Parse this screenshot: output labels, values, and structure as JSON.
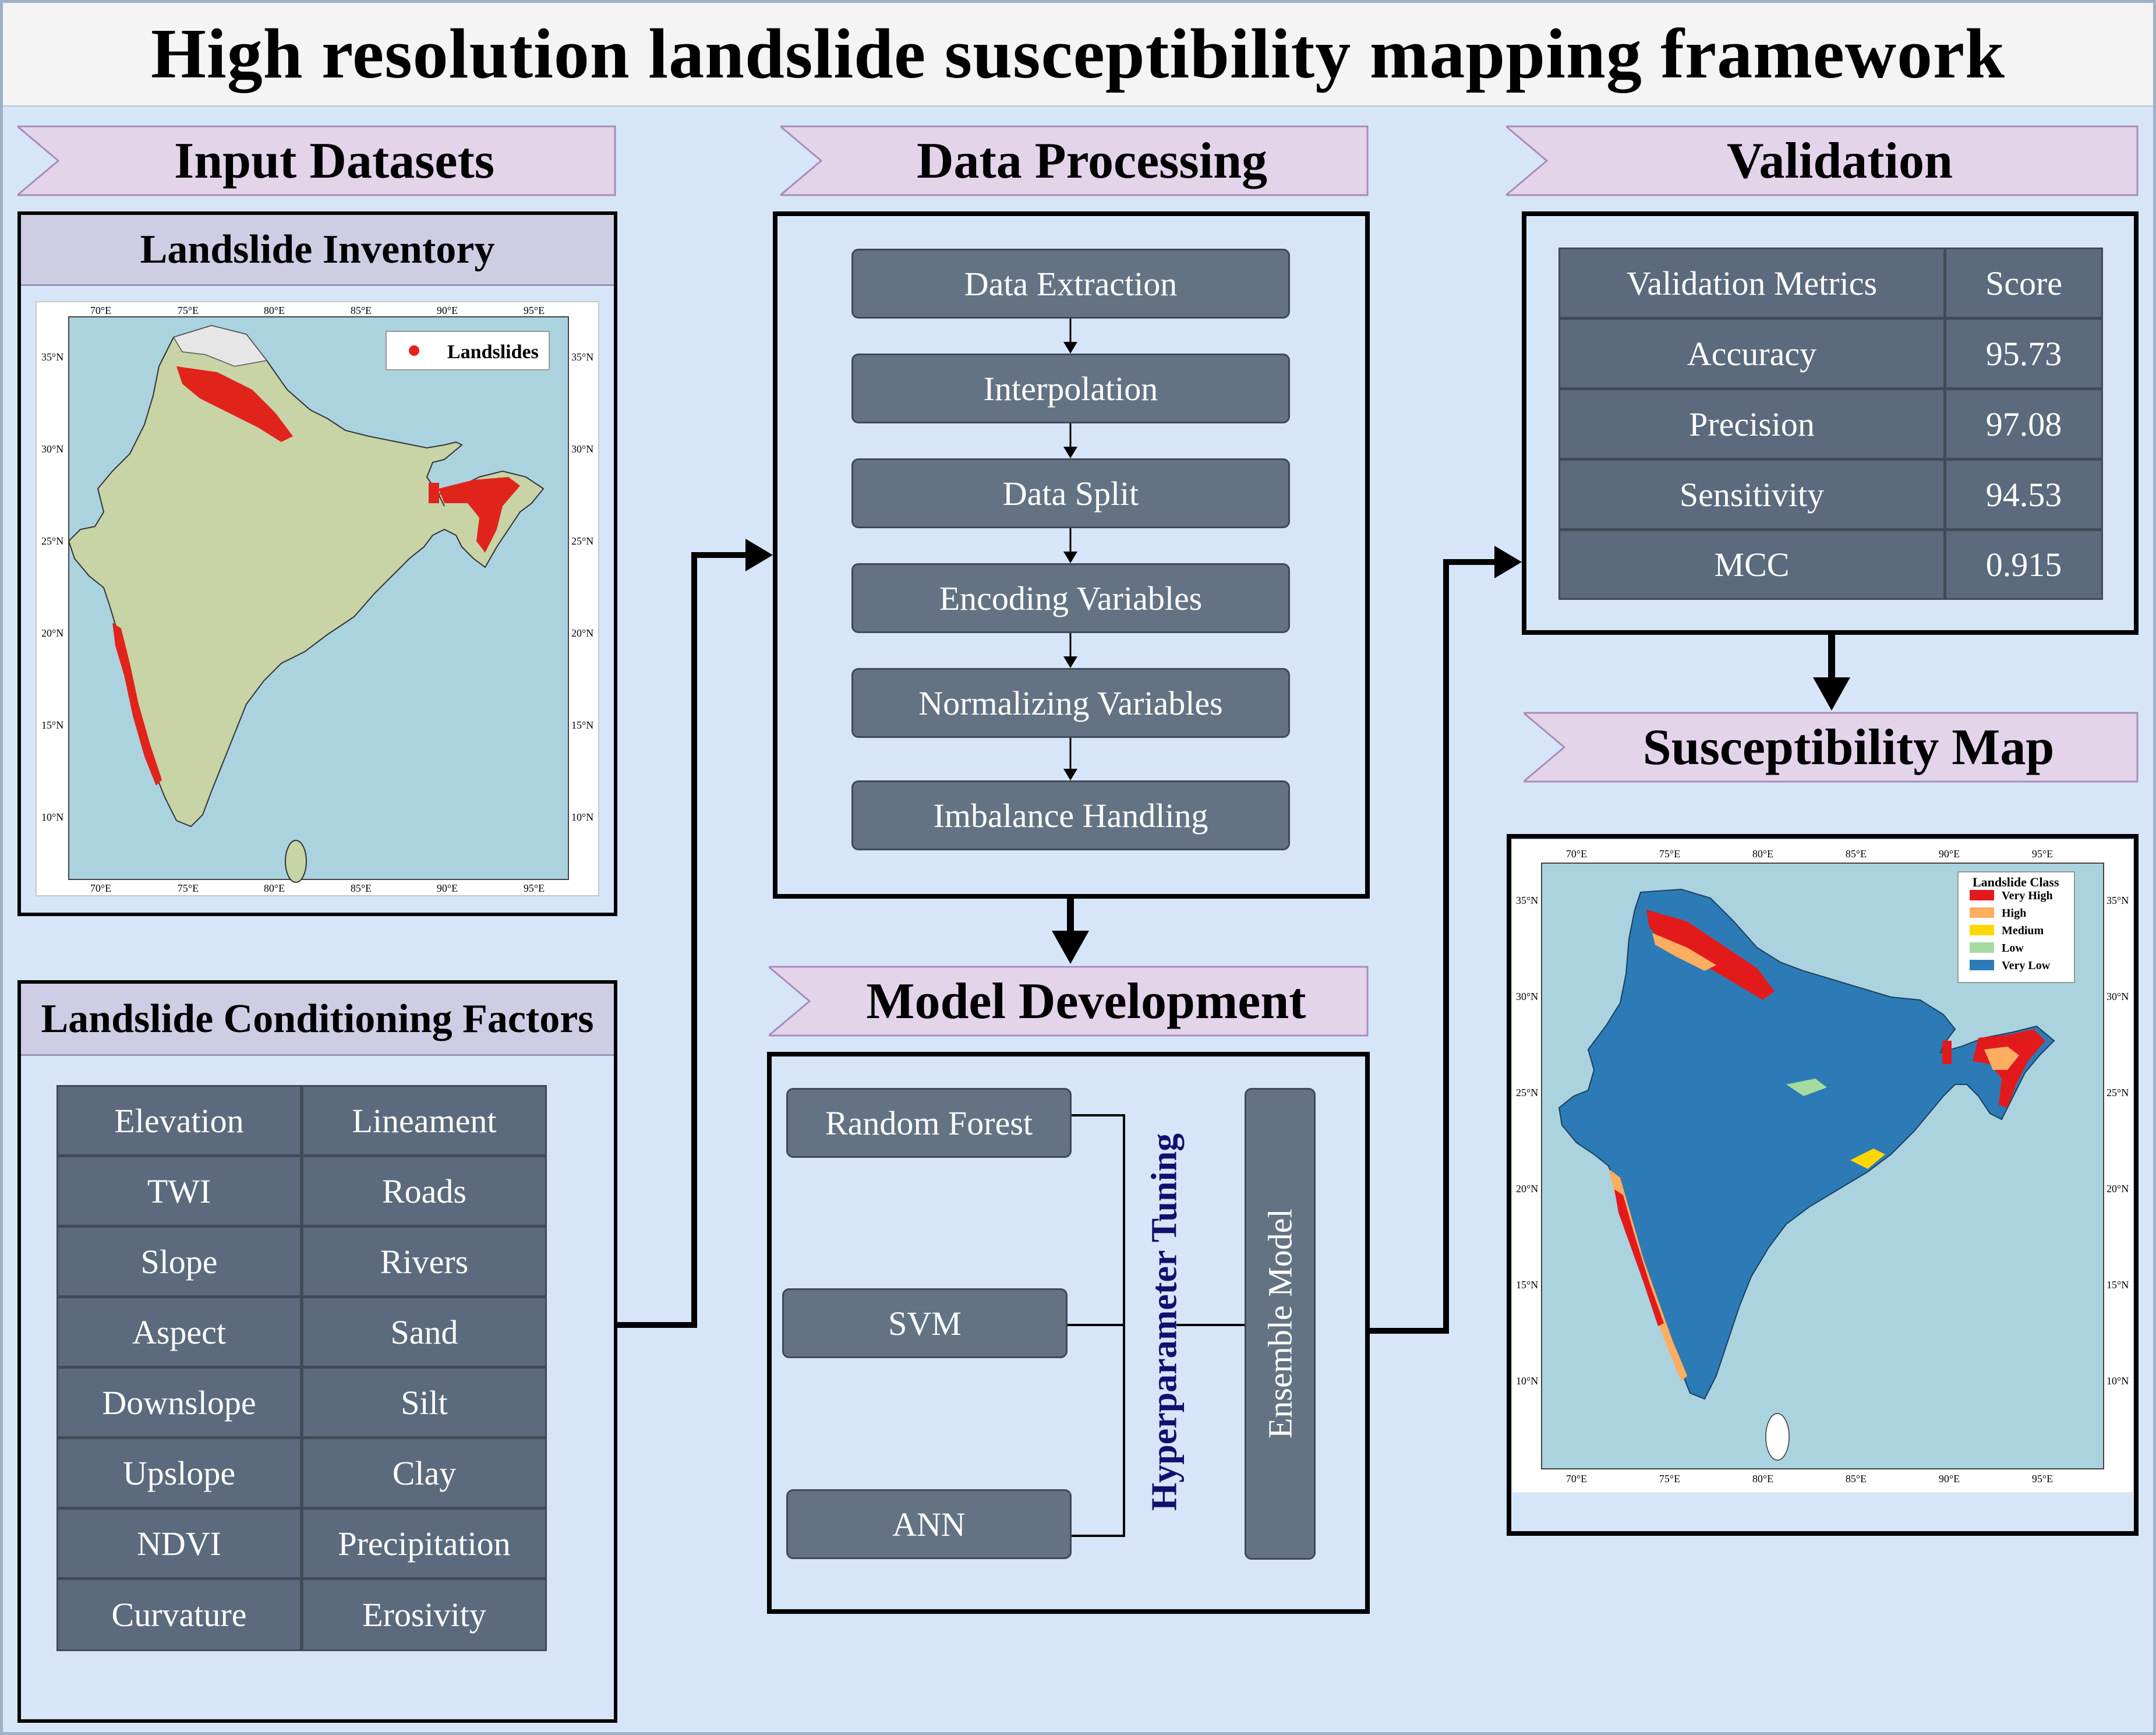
{
  "title": "High resolution landslide susceptibility mapping framework",
  "sections": {
    "input": "Input Datasets",
    "processing": "Data Processing",
    "validation": "Validation",
    "model": "Model Development",
    "susceptibility": "Susceptibility Map"
  },
  "inventory": {
    "title": "Landslide Inventory",
    "legend": "Landslides",
    "x_ticks": [
      "70°E",
      "75°E",
      "80°E",
      "85°E",
      "90°E",
      "95°E"
    ],
    "y_ticks": [
      "35°N",
      "30°N",
      "25°N",
      "20°N",
      "15°N",
      "10°N"
    ]
  },
  "conditioning": {
    "title": "Landslide Conditioning Factors",
    "left": [
      "Elevation",
      "TWI",
      "Slope",
      "Aspect",
      "Downslope",
      "Upslope",
      "NDVI",
      "Curvature"
    ],
    "right": [
      "Lineament",
      "Roads",
      "Rivers",
      "Sand",
      "Silt",
      "Clay",
      "Precipitation",
      "Erosivity"
    ]
  },
  "processing_steps": [
    "Data Extraction",
    "Interpolation",
    "Data Split",
    "Encoding Variables",
    "Normalizing Variables",
    "Imbalance Handling"
  ],
  "model": {
    "models": [
      "Random Forest",
      "SVM",
      "ANN"
    ],
    "tuning": "Hyperparameter Tuning",
    "ensemble": "Ensemble Model"
  },
  "validation_table": {
    "headers": [
      "Validation Metrics",
      "Score"
    ],
    "rows": [
      [
        "Accuracy",
        "95.73"
      ],
      [
        "Precision",
        "97.08"
      ],
      [
        "Sensitivity",
        "94.53"
      ],
      [
        "MCC",
        "0.915"
      ]
    ]
  },
  "susceptibility_legend": {
    "title": "Landslide Class",
    "classes": [
      {
        "label": "Very High",
        "color": "#e31a1c"
      },
      {
        "label": "High",
        "color": "#fdae61"
      },
      {
        "label": "Medium",
        "color": "#ffd700"
      },
      {
        "label": "Low",
        "color": "#a6dba0"
      },
      {
        "label": "Very Low",
        "color": "#2c7bb6"
      }
    ]
  },
  "colors": {
    "background": "#d6e6f8",
    "banner": "#e3d4ea",
    "step": "#637384",
    "cell": "#5b6a7d",
    "tuning_text": "#10106e",
    "landslide": "#e0241c",
    "ocean": "#aad3df",
    "land": "#c8d3a6"
  }
}
